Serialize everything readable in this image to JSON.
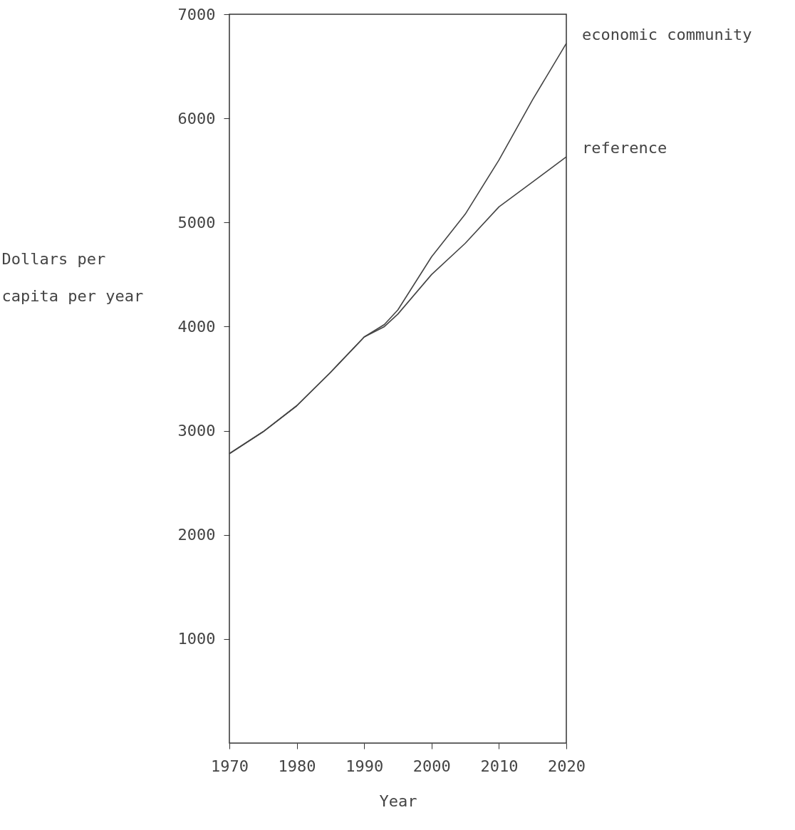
{
  "chart_data": {
    "type": "line",
    "xlabel": "Year",
    "ylabel": "Dollars per capita per year",
    "x": [
      1970,
      1975,
      1980,
      1985,
      1990,
      1993,
      1995,
      2000,
      2005,
      2010,
      2015,
      2020
    ],
    "series": [
      {
        "name": "economic community",
        "color": "#444444",
        "values": [
          2780,
          2990,
          3240,
          3560,
          3900,
          4020,
          4160,
          4670,
          5080,
          5600,
          6180,
          6720
        ]
      },
      {
        "name": "reference",
        "color": "#444444",
        "values": [
          2780,
          2990,
          3240,
          3560,
          3900,
          4000,
          4120,
          4500,
          4800,
          5150,
          5390,
          5630
        ]
      }
    ],
    "xlim": [
      1970,
      2020
    ],
    "xticks": [
      1970,
      1980,
      1990,
      2000,
      2010,
      2020
    ],
    "ylim": [
      0,
      7000
    ],
    "yticks": [
      1000,
      2000,
      3000,
      4000,
      5000,
      6000,
      7000
    ],
    "grid": false
  }
}
